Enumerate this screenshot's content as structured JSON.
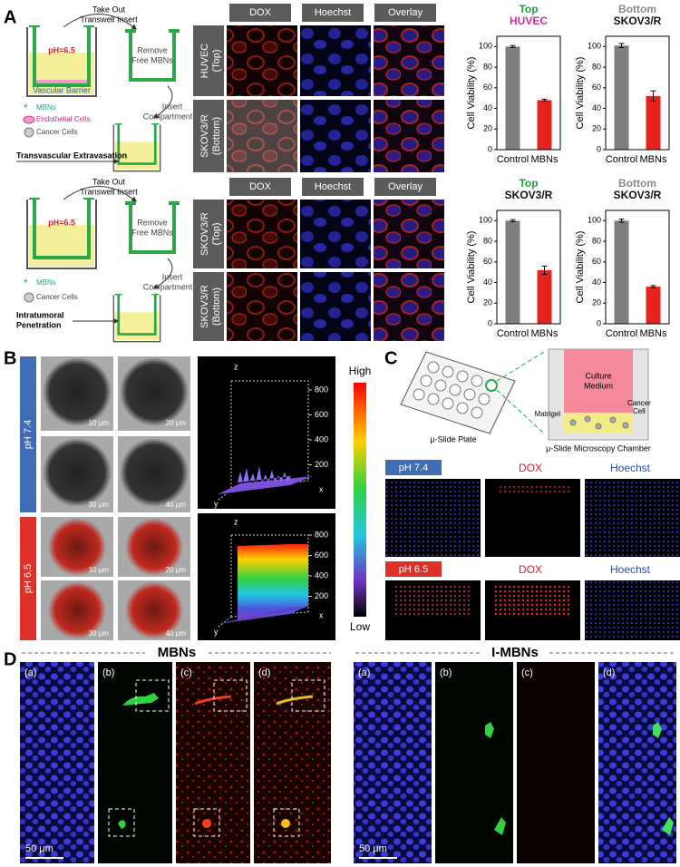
{
  "panel_labels": [
    "A",
    "B",
    "C",
    "D"
  ],
  "panel_a": {
    "schematic_top": {
      "take_out": [
        "Take Out",
        "Transwell Insert"
      ],
      "ph": "pH=6.5",
      "remove": [
        "Remove",
        "Free MBNs"
      ],
      "barrier": "Vascular Barrier",
      "legend": [
        "MBNs",
        "Endothelial Cells",
        "Cancer Cells"
      ],
      "insert": [
        "Insert",
        "Compartment"
      ],
      "process": "Transvascular Extravasation"
    },
    "schematic_bottom": {
      "take_out": [
        "Take Out",
        "Transwell Insert"
      ],
      "ph": "pH=6.5",
      "remove": [
        "Remove",
        "Free MBNs"
      ],
      "legend": [
        "MBNs",
        "Cancer Cells"
      ],
      "insert": [
        "Insert",
        "Compartment"
      ],
      "process": [
        "Intratumoral",
        "Penetration"
      ]
    },
    "columns_top": [
      "DOX",
      "Hoechst",
      "Overlay"
    ],
    "columns_bottom": [
      "DOX",
      "Hoechst",
      "Overlay"
    ],
    "rows_top": [
      [
        "HUVEC",
        "(Top)"
      ],
      [
        "SKOV3/R",
        "(Bottom)"
      ]
    ],
    "rows_bottom": [
      [
        "SKOV3/R",
        "(Top)"
      ],
      [
        "SKOV3/R",
        "(Bottom)"
      ]
    ]
  },
  "chart_data": [
    {
      "type": "bar",
      "title": [
        "Top",
        "HUVEC"
      ],
      "title_colors": [
        "#1e9e3c",
        "#d0309a"
      ],
      "ylabel": "Cell Viability (%)",
      "categories": [
        "Control",
        "MBNs"
      ],
      "values": [
        100,
        48
      ],
      "errors": [
        1,
        1
      ],
      "colors": [
        "#7f7f7f",
        "#e8231b"
      ],
      "ylim": [
        0,
        110
      ],
      "yticks": [
        0,
        20,
        40,
        60,
        80,
        100
      ]
    },
    {
      "type": "bar",
      "title": [
        "Bottom",
        "SKOV3/R"
      ],
      "title_colors": [
        "#8a8a8a",
        "#111111"
      ],
      "ylabel": "Cell Viability (%)",
      "categories": [
        "Control",
        "MBNs"
      ],
      "values": [
        101,
        52
      ],
      "errors": [
        2,
        5
      ],
      "colors": [
        "#7f7f7f",
        "#e8231b"
      ],
      "ylim": [
        0,
        110
      ],
      "yticks": [
        0,
        20,
        40,
        60,
        80,
        100
      ]
    },
    {
      "type": "bar",
      "title": [
        "Top",
        "SKOV3/R"
      ],
      "title_colors": [
        "#1e9e3c",
        "#111111"
      ],
      "ylabel": "Cell Viability (%)",
      "categories": [
        "Control",
        "MBNs"
      ],
      "values": [
        100,
        52
      ],
      "errors": [
        1,
        4
      ],
      "colors": [
        "#7f7f7f",
        "#e8231b"
      ],
      "ylim": [
        0,
        110
      ],
      "yticks": [
        0,
        20,
        40,
        60,
        80,
        100
      ]
    },
    {
      "type": "bar",
      "title": [
        "Bottom",
        "SKOV3/R"
      ],
      "title_colors": [
        "#8a8a8a",
        "#111111"
      ],
      "ylabel": "Cell Viability (%)",
      "categories": [
        "Control",
        "MBNs"
      ],
      "values": [
        100,
        36
      ],
      "errors": [
        1.5,
        1
      ],
      "colors": [
        "#7f7f7f",
        "#e8231b"
      ],
      "ylim": [
        0,
        110
      ],
      "yticks": [
        0,
        20,
        40,
        60,
        80,
        100
      ]
    }
  ],
  "panel_b": {
    "conditions": [
      "pH 7.4",
      "pH 6.5"
    ],
    "depths_top": [
      "10 μm",
      "20 μm",
      "30 μm",
      "40 μm"
    ],
    "depths_bottom": [
      "10 μm",
      "20 μm",
      "30 μm",
      "40 μm"
    ],
    "axes": [
      "z",
      "x",
      "y"
    ],
    "zticks": [
      200,
      400,
      600,
      800
    ],
    "zlim": [
      0,
      800
    ],
    "colorbar": [
      "High",
      "Low"
    ]
  },
  "panel_c": {
    "chamber": {
      "medium": [
        "Culture",
        "Medium"
      ],
      "cell": [
        "Cancer",
        "Cell"
      ],
      "matrigel": "Matrigel",
      "plate": "μ-Slide Plate",
      "caption": "μ-Slide Microscopy Chamber"
    },
    "row_top": [
      "pH 7.4",
      "DOX",
      "Hoechst"
    ],
    "row_bottom": [
      "pH 6.5",
      "DOX",
      "Hoechst"
    ]
  },
  "panel_d": {
    "groups": [
      "MBNs",
      "I-MBNs"
    ],
    "subpanels_left": [
      "(a)",
      "(b)",
      "(c)",
      "(d)"
    ],
    "subpanels_right": [
      "(a)",
      "(b)",
      "(c)",
      "(d)"
    ],
    "scale": [
      "50 μm",
      "50 μm"
    ]
  }
}
